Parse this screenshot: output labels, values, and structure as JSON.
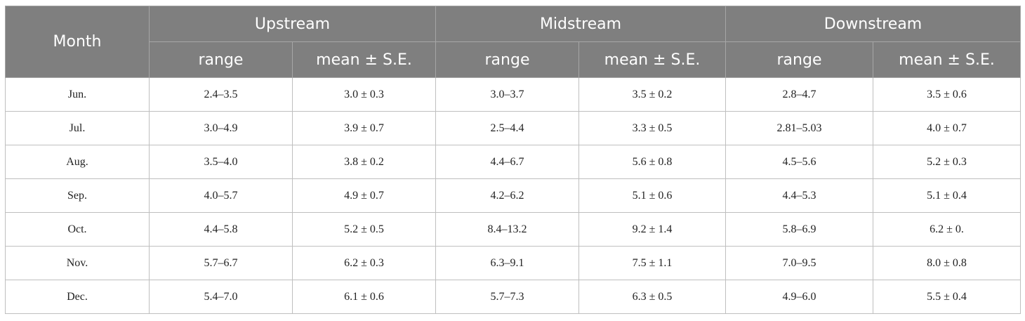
{
  "header": {
    "month": "Month",
    "groups": [
      "Upstream",
      "Midstream",
      "Downstream"
    ],
    "subheaders": [
      "range",
      "mean ± S.E.",
      "range",
      "mean ± S.E.",
      "range",
      "mean ± S.E."
    ]
  },
  "table": {
    "rows": [
      [
        "Jun.",
        "2.4–3.5",
        "3.0 ± 0.3",
        "3.0–3.7",
        "3.5 ± 0.2",
        "2.8–4.7",
        "3.5 ± 0.6"
      ],
      [
        "Jul.",
        "3.0–4.9",
        "3.9 ± 0.7",
        "2.5–4.4",
        "3.3 ± 0.5",
        "2.81–5.03",
        "4.0 ± 0.7"
      ],
      [
        "Aug.",
        "3.5–4.0",
        "3.8 ± 0.2",
        "4.4–6.7",
        "5.6 ± 0.8",
        "4.5–5.6",
        "5.2 ± 0.3"
      ],
      [
        "Sep.",
        "4.0–5.7",
        "4.9 ± 0.7",
        "4.2–6.2",
        "5.1 ± 0.6",
        "4.4–5.3",
        "5.1 ± 0.4"
      ],
      [
        "Oct.",
        "4.4–5.8",
        "5.2 ± 0.5",
        "8.4–13.2",
        "9.2 ± 1.4",
        "5.8–6.9",
        "6.2 ± 0."
      ],
      [
        "Nov.",
        "5.7–6.7",
        "6.2 ± 0.3",
        "6.3–9.1",
        "7.5 ± 1.1",
        "7.0–9.5",
        "8.0 ± 0.8"
      ],
      [
        "Dec.",
        "5.4–7.0",
        "6.1 ± 0.6",
        "5.7–7.3",
        "6.3 ± 0.5",
        "4.9–6.0",
        "5.5 ± 0.4"
      ]
    ]
  }
}
